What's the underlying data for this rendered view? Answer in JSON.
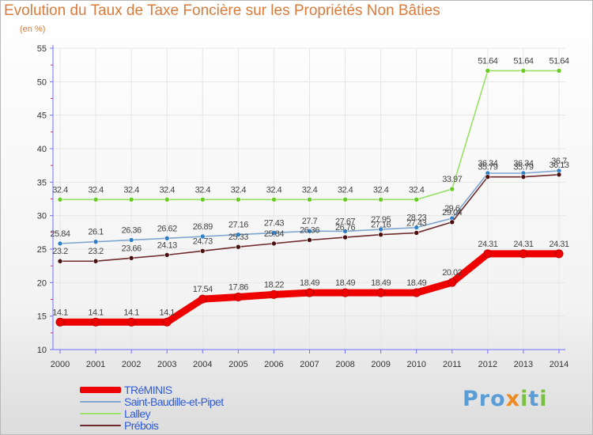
{
  "title": "Evolution du Taux de Taxe Foncière sur les Propriétés Non Bâties",
  "unit_label": "(en %)",
  "logo": {
    "p1": "Pro",
    "x": "x",
    "i": "i",
    "t": "t",
    "i2": "i"
  },
  "colors": {
    "title": "#d97b3c",
    "axis": "#6f6fff",
    "grid": "#e6e6e6"
  },
  "chart_data": {
    "type": "line",
    "title": "Evolution du Taux de Taxe Foncière sur les Propriétés Non Bâties",
    "ylabel": "(en %)",
    "xlabel": "",
    "ylim": [
      10,
      55
    ],
    "yticks": [
      10,
      15,
      20,
      25,
      30,
      35,
      40,
      45,
      50,
      55
    ],
    "categories": [
      "2000",
      "2001",
      "2002",
      "2003",
      "2004",
      "2005",
      "2006",
      "2007",
      "2008",
      "2009",
      "2010",
      "2011",
      "2012",
      "2013",
      "2014"
    ],
    "series": [
      {
        "name": "TRéMINIS",
        "color": "#ee0000",
        "marker": "#ee0000",
        "values": [
          14.1,
          14.1,
          14.1,
          14.1,
          17.54,
          17.86,
          18.22,
          18.49,
          18.49,
          18.49,
          18.49,
          20.02,
          24.31,
          24.31,
          24.31
        ],
        "labels": [
          "14.1",
          "14.1",
          "14.1",
          "14.1",
          "17.54",
          "17.86",
          "18.22",
          "18.49",
          "18.49",
          "18.49",
          "18.49",
          "20.02",
          "24.31",
          "24.31",
          "24.31"
        ]
      },
      {
        "name": "Saint-Baudille-et-Pipet",
        "color": "#7fa6cf",
        "marker": "#2e7fc6",
        "values": [
          25.84,
          26.1,
          26.36,
          26.62,
          26.89,
          27.16,
          27.43,
          27.7,
          27.67,
          27.95,
          28.23,
          29.6,
          36.34,
          36.34,
          36.7
        ],
        "labels": [
          "25.84",
          "26.1",
          "26.36",
          "26.62",
          "26.89",
          "27.16",
          "27.43",
          "27.7",
          "27.67",
          "27.95",
          "28.23",
          "29.6",
          "36.34",
          "36.34",
          "36.7"
        ]
      },
      {
        "name": "Lalley",
        "color": "#99e066",
        "marker": "#66cc22",
        "values": [
          32.4,
          32.4,
          32.4,
          32.4,
          32.4,
          32.4,
          32.4,
          32.4,
          32.4,
          32.4,
          32.4,
          33.97,
          51.64,
          51.64,
          51.64
        ],
        "labels": [
          "32.4",
          "32.4",
          "32.4",
          "32.4",
          "32.4",
          "32.4",
          "32.4",
          "32.4",
          "32.4",
          "32.4",
          "32.4",
          "33.97",
          "51.64",
          "51.64",
          "51.64"
        ]
      },
      {
        "name": "Prébois",
        "color": "#6e2a2a",
        "marker": "#4a1010",
        "values": [
          23.2,
          23.2,
          23.66,
          24.13,
          24.73,
          25.33,
          25.84,
          26.36,
          26.76,
          27.16,
          27.43,
          29.04,
          35.79,
          35.79,
          36.13
        ],
        "labels": [
          "23.2",
          "23.2",
          "23.66",
          "24.13",
          "24.73",
          "25.33",
          "25.84",
          "26.36",
          "26.76",
          "27.16",
          "27.43",
          "29.04",
          "35.79",
          "35.79",
          "36.13"
        ]
      }
    ]
  }
}
